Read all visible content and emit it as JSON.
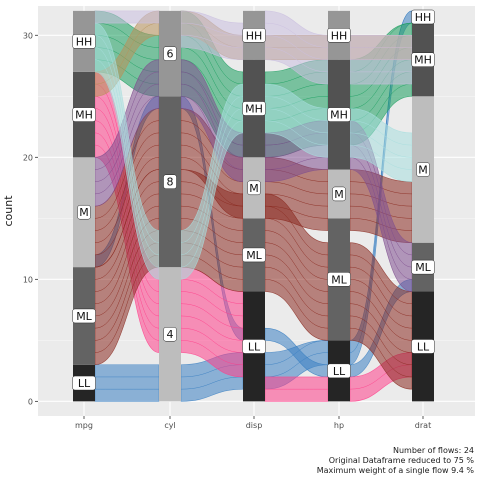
{
  "chart_data": {
    "type": "alluvial",
    "title": "",
    "xlabel": "",
    "ylabel": "count",
    "ylim": [
      -1.2,
      32.4
    ],
    "y_ticks": [
      0,
      10,
      20,
      30
    ],
    "axes": [
      "mpg",
      "cyl",
      "disp",
      "hp",
      "drat"
    ],
    "strata": {
      "mpg": [
        {
          "label": "LL",
          "from": 0,
          "to": 3
        },
        {
          "label": "ML",
          "from": 3,
          "to": 11
        },
        {
          "label": "M",
          "from": 11,
          "to": 20
        },
        {
          "label": "MH",
          "from": 20,
          "to": 27
        },
        {
          "label": "HH",
          "from": 27,
          "to": 32
        }
      ],
      "cyl": [
        {
          "label": "4",
          "from": 0,
          "to": 11
        },
        {
          "label": "8",
          "from": 11,
          "to": 25
        },
        {
          "label": "6",
          "from": 25,
          "to": 32
        }
      ],
      "disp": [
        {
          "label": "LL",
          "from": 0,
          "to": 9
        },
        {
          "label": "ML",
          "from": 9,
          "to": 15
        },
        {
          "label": "M",
          "from": 15,
          "to": 20
        },
        {
          "label": "MH",
          "from": 20,
          "to": 28
        },
        {
          "label": "HH",
          "from": 28,
          "to": 32
        }
      ],
      "hp": [
        {
          "label": "LL",
          "from": 0,
          "to": 5
        },
        {
          "label": "ML",
          "from": 5,
          "to": 15
        },
        {
          "label": "M",
          "from": 15,
          "to": 19
        },
        {
          "label": "MH",
          "from": 19,
          "to": 28
        },
        {
          "label": "HH",
          "from": 28,
          "to": 32
        }
      ],
      "drat": [
        {
          "label": "LL",
          "from": 0,
          "to": 9
        },
        {
          "label": "ML",
          "from": 9,
          "to": 13
        },
        {
          "label": "M",
          "from": 13,
          "to": 25
        },
        {
          "label": "MH",
          "from": 25,
          "to": 31
        },
        {
          "label": "HH",
          "from": 31,
          "to": 32
        }
      ]
    },
    "stratum_fills": {
      "LL": "#252525",
      "ML": "#636363",
      "M": "#bdbdbd",
      "MH": "#525252",
      "HH": "#969696",
      "4": "#bdbdbd",
      "8": "#636363",
      "6": "#969696"
    },
    "flows": [
      {
        "color": "#3a7fc2",
        "segments": [
          {
            "from": [
              0,
              3
            ],
            "to": [
              0,
              3
            ]
          },
          {
            "from": [
              0,
              3
            ],
            "to": [
              1,
              4
            ]
          },
          {
            "from": [
              1,
              4
            ],
            "to": [
              3,
              5
            ]
          },
          {
            "from": [
              3,
              5
            ],
            "to": [
              31,
              32
            ]
          }
        ]
      },
      {
        "color": "#3a7fc2",
        "segments": [
          {
            "from": [
              11,
              12
            ],
            "to": [
              24,
              25
            ]
          },
          {
            "from": [
              24,
              25
            ],
            "to": [
              5,
              6
            ]
          },
          {
            "from": [
              5,
              6
            ],
            "to": [
              2,
              3
            ]
          },
          {
            "from": [
              2,
              3
            ],
            "to": [
              9,
              10
            ]
          }
        ]
      },
      {
        "color": "#ff3f8b",
        "segments": [
          {
            "from": [
              20,
              27
            ],
            "to": [
              4,
              11
            ]
          },
          {
            "from": [
              4,
              11
            ],
            "to": [
              2,
              9
            ]
          },
          {
            "from": [
              0,
              2
            ],
            "to": [
              0,
              2
            ]
          },
          {
            "from": [
              0,
              2
            ],
            "to": [
              2,
              4
            ]
          }
        ]
      },
      {
        "color": "#1a9e5f",
        "segments": [
          {
            "from": [
              27,
              32
            ],
            "to": [
              25,
              30
            ]
          },
          {
            "from": [
              25,
              32
            ],
            "to": [
              20,
              27
            ]
          },
          {
            "from": [
              20,
              27
            ],
            "to": [
              21,
              28
            ]
          },
          {
            "from": [
              21,
              28
            ],
            "to": [
              25,
              31
            ]
          }
        ]
      },
      {
        "color": "#b8925a",
        "segments": [
          {
            "from": [
              25,
              27
            ],
            "to": [
              30,
              32
            ]
          },
          {
            "from": [
              30,
              32
            ],
            "to": [
              28,
              30
            ]
          },
          {
            "from": [
              28,
              30
            ],
            "to": [
              28,
              30
            ]
          },
          {
            "from": [
              28,
              30
            ],
            "to": [
              28,
              30
            ]
          }
        ]
      },
      {
        "color": "#8b2a20",
        "segments": [
          {
            "from": [
              3,
              11
            ],
            "to": [
              11,
              19
            ]
          },
          {
            "from": [
              11,
              19
            ],
            "to": [
              9,
              17
            ]
          },
          {
            "from": [
              9,
              17
            ],
            "to": [
              5,
              13
            ]
          },
          {
            "from": [
              5,
              13
            ],
            "to": [
              1,
              9
            ]
          }
        ]
      },
      {
        "color": "#8b2a20",
        "segments": [
          {
            "from": [
              11,
              16
            ],
            "to": [
              19,
              24
            ]
          },
          {
            "from": [
              19,
              24
            ],
            "to": [
              15,
              20
            ]
          },
          {
            "from": [
              15,
              20
            ],
            "to": [
              14,
              19
            ]
          },
          {
            "from": [
              14,
              19
            ],
            "to": [
              13,
              18
            ]
          }
        ]
      },
      {
        "color": "#7f4f8f",
        "segments": [
          {
            "from": [
              16,
              20
            ],
            "to": [
              24,
              28
            ]
          },
          {
            "from": [
              24,
              28
            ],
            "to": [
              18,
              22
            ]
          },
          {
            "from": [
              18,
              22
            ],
            "to": [
              19,
              23
            ]
          },
          {
            "from": [
              19,
              23
            ],
            "to": [
              9,
              13
            ]
          }
        ]
      },
      {
        "color": "#a8dede",
        "segments": [
          {
            "from": [
              27,
              31
            ],
            "to": [
              10,
              14
            ]
          },
          {
            "from": [
              10,
              14
            ],
            "to": [
              22,
              26
            ]
          },
          {
            "from": [
              22,
              26
            ],
            "to": [
              20,
              24
            ]
          },
          {
            "from": [
              20,
              24
            ],
            "to": [
              18,
              22
            ]
          }
        ]
      },
      {
        "color": "#cbbfe0",
        "segments": [
          {
            "from": [
              31,
              32
            ],
            "to": [
              31,
              32
            ]
          },
          {
            "from": [
              29,
              32
            ],
            "to": [
              28,
              31
            ]
          },
          {
            "from": [
              28,
              32
            ],
            "to": [
              26,
              30
            ]
          },
          {
            "from": [
              26,
              30
            ],
            "to": [
              26,
              30
            ]
          }
        ]
      }
    ],
    "series": [
      {
        "name": "",
        "note": "flows are colored by their cyl/mpg combination; no legend is printed"
      }
    ],
    "grid": true,
    "legend": "none"
  },
  "caption": {
    "line1": "Number of flows: 24",
    "line2": "Original Dataframe reduced to 75 %",
    "line3": "Maximum weight of a single flow 9.4 %"
  }
}
